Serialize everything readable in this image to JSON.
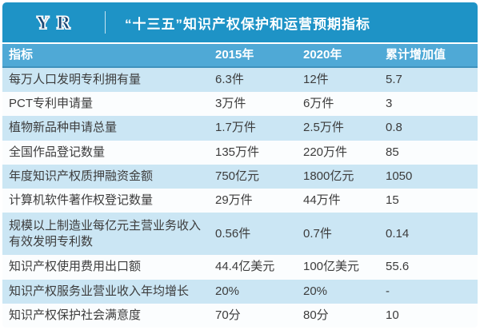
{
  "header": {
    "logo": "YR",
    "title": "“十三五”知识产权保护和运营预期指标"
  },
  "table": {
    "columns": [
      "指标",
      "2015年",
      "2020年",
      "累计增加值"
    ],
    "rows": [
      {
        "indicator": "每万人口发明专利拥有量",
        "y2015": "6.3件",
        "y2020": "12件",
        "increase": "5.7"
      },
      {
        "indicator": "PCT专利申请量",
        "y2015": "3万件",
        "y2020": "6万件",
        "increase": "3"
      },
      {
        "indicator": "植物新品种申请总量",
        "y2015": "1.7万件",
        "y2020": "2.5万件",
        "increase": "0.8"
      },
      {
        "indicator": "全国作品登记数量",
        "y2015": "135万件",
        "y2020": "220万件",
        "increase": "85"
      },
      {
        "indicator": "年度知识产权质押融资金额",
        "y2015": "750亿元",
        "y2020": "1800亿元",
        "increase": "1050"
      },
      {
        "indicator": "计算机软件著作权登记数量",
        "y2015": "29万件",
        "y2020": "44万件",
        "increase": "15"
      },
      {
        "indicator": "规模以上制造业每亿元主营业务收入有效发明专利数",
        "y2015": "0.56件",
        "y2020": "0.7件",
        "increase": "0.14"
      },
      {
        "indicator": "知识产权使用费用出口额",
        "y2015": "44.4亿美元",
        "y2020": "100亿美元",
        "increase": "55.6"
      },
      {
        "indicator": "知识产权服务业营业收入年均增长",
        "y2015": "20%",
        "y2020": "20%",
        "increase": "-"
      },
      {
        "indicator": "知识产权保护社会满意度",
        "y2015": "70分",
        "y2020": "80分",
        "increase": "10"
      }
    ]
  },
  "colors": {
    "banner_blue": "#1e93c6",
    "header_row_blue": "#4fa9d6",
    "row_alt_blue": "#cbe6f4",
    "row_base_white": "#fbfdfe",
    "body_text": "#3c3c3c",
    "logo_navy": "#1c4a77",
    "header_text": "#ffffff"
  },
  "chart_data": {
    "type": "table",
    "title": "“十三五”知识产权保护和运营预期指标",
    "columns": [
      "指标",
      "2015年",
      "2020年",
      "累计增加值"
    ],
    "rows": [
      [
        "每万人口发明专利拥有量",
        "6.3件",
        "12件",
        "5.7"
      ],
      [
        "PCT专利申请量",
        "3万件",
        "6万件",
        "3"
      ],
      [
        "植物新品种申请总量",
        "1.7万件",
        "2.5万件",
        "0.8"
      ],
      [
        "全国作品登记数量",
        "135万件",
        "220万件",
        "85"
      ],
      [
        "年度知识产权质押融资金额",
        "750亿元",
        "1800亿元",
        "1050"
      ],
      [
        "计算机软件著作权登记数量",
        "29万件",
        "44万件",
        "15"
      ],
      [
        "规模以上制造业每亿元主营业务收入有效发明专利数",
        "0.56件",
        "0.7件",
        "0.14"
      ],
      [
        "知识产权使用费用出口额",
        "44.4亿美元",
        "100亿美元",
        "55.6"
      ],
      [
        "知识产权服务业营业收入年均增长",
        "20%",
        "20%",
        "-"
      ],
      [
        "知识产权保护社会满意度",
        "70分",
        "80分",
        "10"
      ]
    ]
  }
}
